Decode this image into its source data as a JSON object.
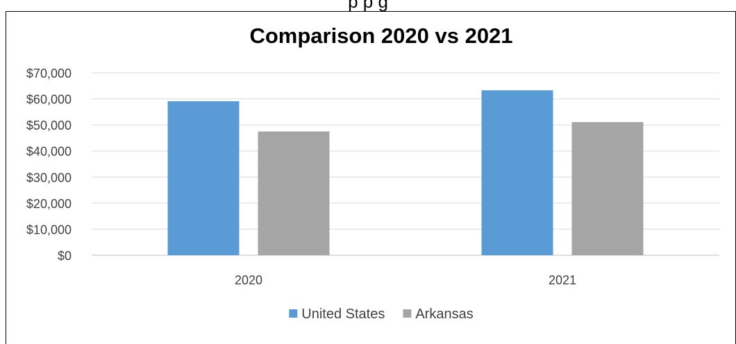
{
  "top_text": "p                                                           p                                                         g",
  "chart_data": {
    "type": "bar",
    "title": "Comparison 2020 vs 2021",
    "categories": [
      "2020",
      "2021"
    ],
    "series": [
      {
        "name": "United States",
        "values": [
          59100,
          63300
        ],
        "color": "#5b9bd5"
      },
      {
        "name": "Arkansas",
        "values": [
          47500,
          51100
        ],
        "color": "#a5a5a5"
      }
    ],
    "y_ticks": [
      "$0",
      "$10,000",
      "$20,000",
      "$30,000",
      "$40,000",
      "$50,000",
      "$60,000",
      "$70,000"
    ],
    "ylim": [
      0,
      70000
    ],
    "grid": true,
    "legend": "bottom"
  }
}
